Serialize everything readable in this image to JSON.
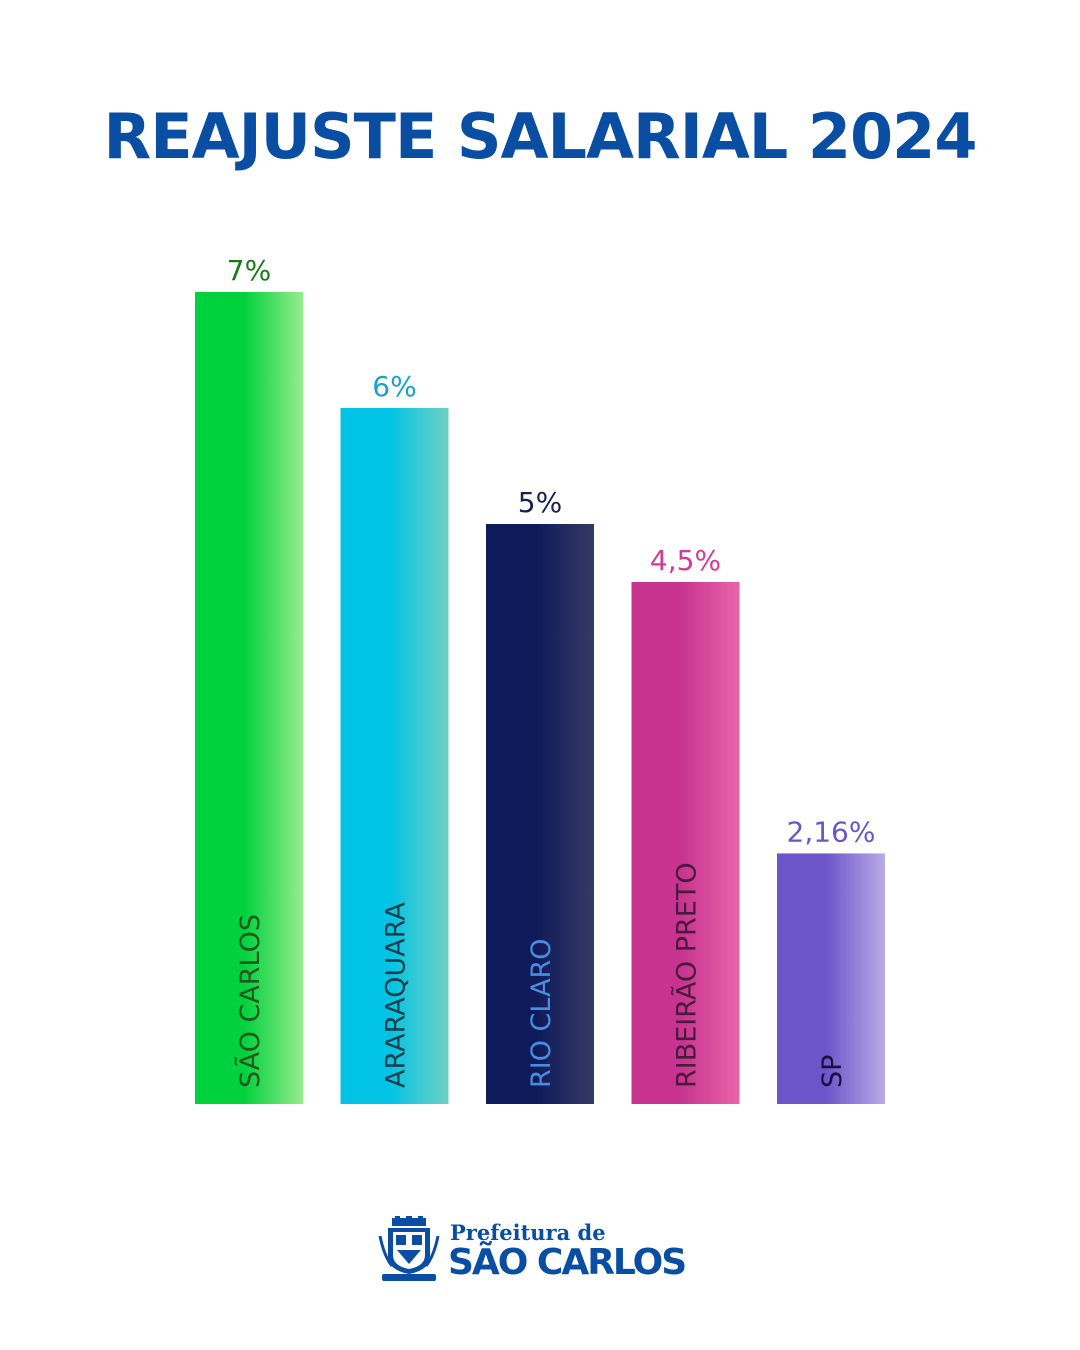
{
  "chart_data": {
    "type": "bar",
    "title": "REAJUSTE SALARIAL 2024",
    "categories": [
      "SÃO CARLOS",
      "ARARAQUARA",
      "RIO CLARO",
      "RIBEIRÃO PRETO",
      "SP"
    ],
    "values": [
      7,
      6,
      5,
      4.5,
      2.16
    ],
    "value_labels": [
      "7%",
      "6%",
      "5%",
      "4,5%",
      "2,16%"
    ],
    "ylim": [
      0,
      7
    ],
    "grid": false,
    "legend": "none",
    "bar_colors": [
      [
        "#00d13c",
        "#97ec8f"
      ],
      [
        "#00c3e5",
        "#6fd0c3"
      ],
      [
        "#0e1a59",
        "#343a64"
      ],
      [
        "#c7338f",
        "#e964a8"
      ],
      [
        "#6a56c9",
        "#b7abe8"
      ]
    ],
    "value_label_colors": [
      "#1a7a1a",
      "#1aa3c6",
      "#1a1f4f",
      "#d43b93",
      "#6a56c9"
    ],
    "category_label_colors": [
      "#1f5a1f",
      "#1a3f4a",
      "#4a8de0",
      "#4a1a3a",
      "#1a1040"
    ]
  },
  "footer": {
    "logo_line1": "Prefeitura de",
    "logo_line2": "SÃO CARLOS",
    "emblem_icon": "city-coat-of-arms-icon"
  },
  "colors": {
    "brand_blue": "#0a4ea3"
  }
}
